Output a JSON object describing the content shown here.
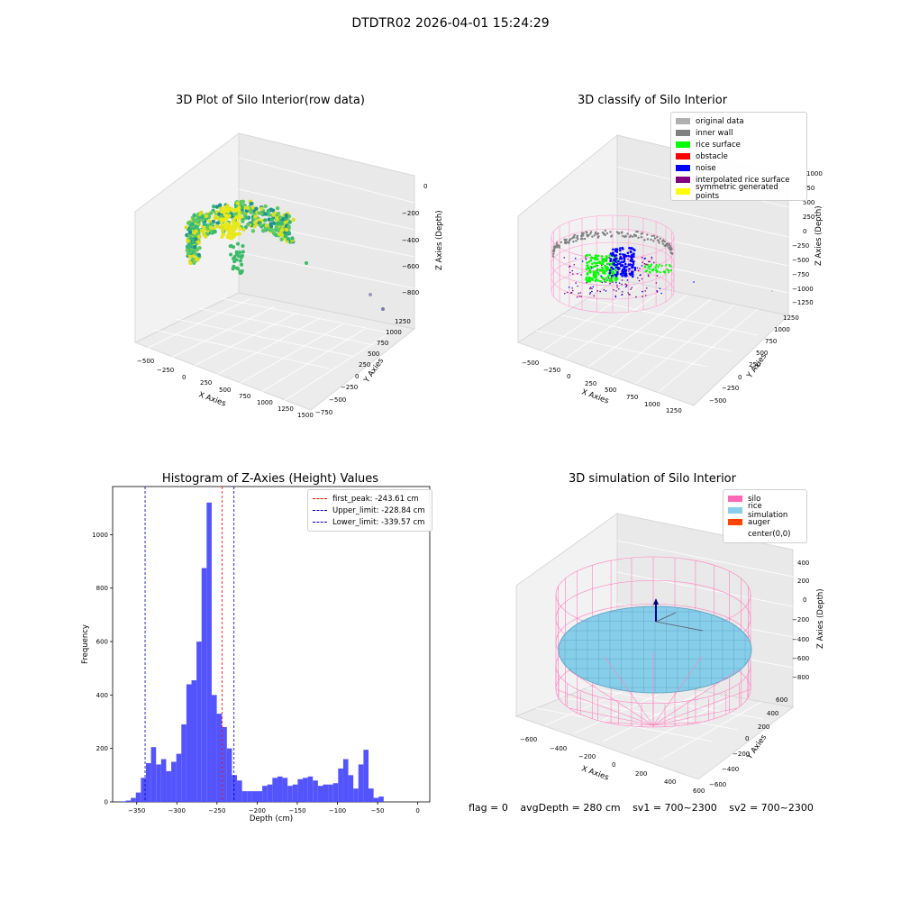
{
  "suptitle": "DTDTR02 2026-04-01 15:24:29",
  "footer": {
    "flag": "flag = 0",
    "avg_depth": "avgDepth = 280 cm",
    "sv1": "sv1 = 700~2300",
    "sv2": "sv2 = 700~2300"
  },
  "colors": {
    "original": "#b0b0b0",
    "inner_wall": "#808080",
    "rice_surface": "#00ff00",
    "obstacle": "#ff0000",
    "noise": "#0000ff",
    "interp": "#800080",
    "symmetric": "#ffff00",
    "silo": "#ff69b4",
    "rice_sim": "#87ceeb",
    "auger": "#ff4500",
    "hist": "#4b4bff"
  },
  "chart_data": [
    {
      "type": "scatter",
      "title": "3D Plot of Silo Interior(row data)",
      "xlabel": "X Axies",
      "ylabel": "Y Axies",
      "zlabel": "Z Axies (Depth)",
      "x_ticks": [
        "−500",
        "−250",
        "0",
        "250",
        "500",
        "750",
        "1000",
        "1250",
        "1500"
      ],
      "y_ticks": [
        "−750",
        "−500",
        "−250",
        "0",
        "250",
        "500",
        "750",
        "1000",
        "1250"
      ],
      "z_ticks": [
        "−800",
        "−600",
        "−400",
        "−200",
        "0"
      ]
    },
    {
      "type": "scatter",
      "title": "3D classify of Silo Interior",
      "xlabel": "X Axies",
      "ylabel": "Y Axies",
      "zlabel": "Z Axies (Depth)",
      "x_ticks": [
        "−500",
        "−250",
        "0",
        "250",
        "500",
        "750",
        "1000",
        "1250"
      ],
      "y_ticks": [
        "−500",
        "−250",
        "0",
        "250",
        "500",
        "750",
        "1000",
        "1250"
      ],
      "z_ticks": [
        "−1250",
        "−1000",
        "−750",
        "−500",
        "−250",
        "0",
        "250",
        "500",
        "750",
        "1000"
      ],
      "legend": [
        "original data",
        "inner wall",
        "rice surface",
        "obstacle",
        "noise",
        "interpolated rice surface",
        "symmetric generated points"
      ]
    },
    {
      "type": "bar",
      "title": "Histogram of Z-Axies (Height) Values",
      "xlabel": "Depth (cm)",
      "ylabel": "Frequency",
      "xlim": [
        -380,
        15
      ],
      "ylim": [
        0,
        1180
      ],
      "x_ticks": [
        -350,
        -300,
        -250,
        -200,
        -150,
        -100,
        -50,
        0
      ],
      "y_ticks": [
        0,
        200,
        400,
        600,
        800,
        1000
      ],
      "bin_start": -370,
      "bin_width": 6.3,
      "values": [
        2,
        5,
        15,
        35,
        90,
        145,
        205,
        140,
        160,
        115,
        150,
        180,
        290,
        440,
        455,
        600,
        875,
        1120,
        400,
        330,
        280,
        200,
        100,
        80,
        40,
        40,
        40,
        40,
        60,
        65,
        90,
        95,
        90,
        60,
        65,
        85,
        90,
        95,
        80,
        60,
        65,
        65,
        70,
        125,
        160,
        100,
        50,
        140,
        195,
        50,
        15,
        20
      ],
      "lines": [
        {
          "name": "first_peak: -243.61 cm",
          "x": -243.61,
          "color": "#ff0000"
        },
        {
          "name": "Upper_limit: -228.84 cm",
          "x": -228.84,
          "color": "#0000aa"
        },
        {
          "name": "Lower_limit: -339.57 cm",
          "x": -339.57,
          "color": "#0000aa"
        }
      ]
    },
    {
      "type": "scatter",
      "title": "3D simulation of Silo Interior",
      "xlabel": "X Axies",
      "ylabel": "Y Axies",
      "zlabel": "Z Axies (Depth)",
      "x_ticks": [
        "−600",
        "−400",
        "−200",
        "0",
        "200",
        "400",
        "600"
      ],
      "y_ticks": [
        "−600",
        "−400",
        "−200",
        "0",
        "200",
        "400",
        "600"
      ],
      "z_ticks": [
        "−800",
        "−600",
        "−400",
        "−200",
        "0",
        "200",
        "400"
      ],
      "legend": [
        "silo",
        "rice simulation",
        "auger",
        "center(0,0)"
      ]
    }
  ]
}
